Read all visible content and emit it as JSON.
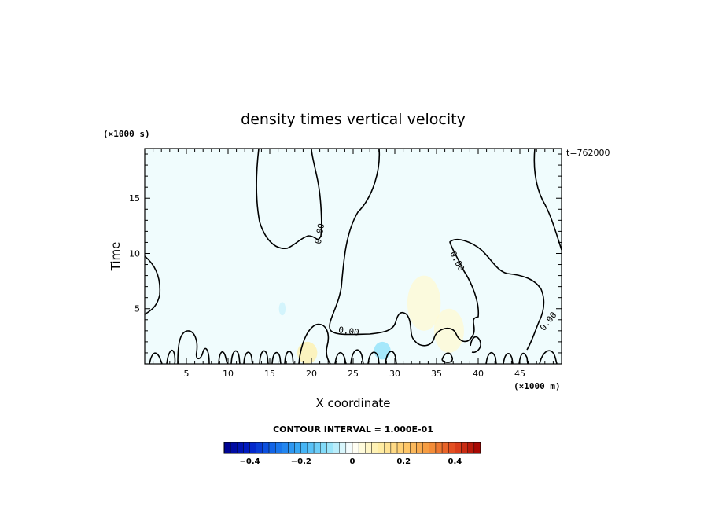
{
  "chart_data": {
    "type": "heatmap",
    "title": "density times vertical velocity",
    "xlabel": "X coordinate",
    "ylabel": "Time",
    "x_unit": "(×1000 m)",
    "y_unit": "(×1000 s)",
    "time_label": "t=762000",
    "xlim": [
      0,
      50
    ],
    "ylim": [
      0,
      19.5
    ],
    "x_ticks": [
      5,
      10,
      15,
      20,
      25,
      30,
      35,
      40,
      45
    ],
    "y_ticks": [
      5,
      10,
      15
    ],
    "contour_level_label": "0.00",
    "contour_interval_label": "CONTOUR INTERVAL = 1.000E-01",
    "colorbar": {
      "range": [
        -0.5,
        0.5
      ],
      "tick_values": [
        -0.4,
        -0.2,
        0,
        0.2,
        0.4
      ],
      "tick_labels": [
        "−0.4",
        "−0.2",
        "0",
        "0.2",
        "0.4"
      ]
    },
    "background_field_color": "#f0fcfd",
    "contour_color": "#000000",
    "features": [
      {
        "type": "positive",
        "x": 33.5,
        "y": 5.5,
        "rx": 2.0,
        "ry": 2.5,
        "value": 0.05
      },
      {
        "type": "positive",
        "x": 36.5,
        "y": 3.0,
        "rx": 1.8,
        "ry": 2.0,
        "value": 0.05
      },
      {
        "type": "positive",
        "x": 19.5,
        "y": 1.0,
        "rx": 1.2,
        "ry": 1.0,
        "value": 0.1
      },
      {
        "type": "negative",
        "x": 28.5,
        "y": 1.2,
        "rx": 1.0,
        "ry": 0.8,
        "value": -0.1
      },
      {
        "type": "negative",
        "x": 16.5,
        "y": 5.0,
        "rx": 0.4,
        "ry": 0.6,
        "value": -0.05
      }
    ]
  }
}
